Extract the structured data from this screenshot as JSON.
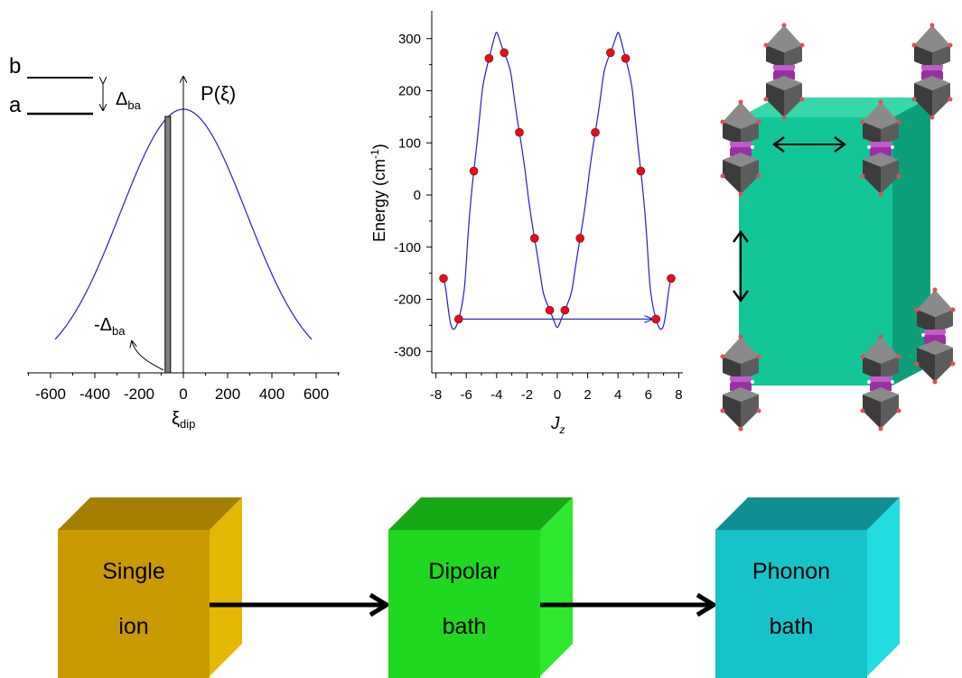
{
  "colors": {
    "curve": "#1f1fd0",
    "point": "#e0101c",
    "bar": "#808080",
    "lattice_box": "#12c697",
    "single_ion_box": "#c99a00",
    "dipolar_box": "#1fd81f",
    "phonon_box": "#16c3c9"
  },
  "panel_gaussian": {
    "level_b": "b",
    "level_a": "a",
    "delta_label": "Δ",
    "delta_sub": "ba",
    "p_label": "P(ξ)",
    "neg_delta_label": "-Δ",
    "neg_delta_sub": "ba",
    "xaxis_symbol": "ξ",
    "xaxis_sub": "dip",
    "xtick_labels": [
      "-600",
      "-400",
      "-200",
      "0",
      "200",
      "400",
      "600"
    ],
    "chart_data": {
      "type": "line",
      "series_shape": "gaussian",
      "center": 0,
      "half_width_at_edge": 580,
      "xlim": [
        -700,
        700
      ],
      "xticks": [
        -600,
        -400,
        -200,
        0,
        200,
        400,
        600
      ],
      "bar_x": -70
    }
  },
  "panel_energy": {
    "ylabel_main": "Energy (cm",
    "ylabel_sup": "-1",
    "ylabel_end": ")",
    "xlabel": "J",
    "xlabel_sub": "z",
    "ytick_labels": [
      "300",
      "200",
      "100",
      "0",
      "-100",
      "-200",
      "-300"
    ],
    "xtick_labels": [
      "-8",
      "-6",
      "-4",
      "-2",
      "0",
      "2",
      "4",
      "6",
      "8"
    ],
    "chart_data": {
      "type": "scatter",
      "x": [
        -7.5,
        -6.5,
        -5.5,
        -4.5,
        -3.5,
        -2.5,
        -1.5,
        -0.5,
        0.5,
        1.5,
        2.5,
        3.5,
        4.5,
        5.5,
        6.5,
        7.5
      ],
      "y": [
        -160,
        -238,
        46,
        262,
        273,
        120,
        -83,
        -221,
        -221,
        -83,
        120,
        273,
        262,
        46,
        -238,
        -160
      ],
      "xlim": [
        -8.5,
        8.5
      ],
      "ylim": [
        -330,
        350
      ],
      "xticks": [
        -8,
        -6,
        -4,
        -2,
        0,
        2,
        4,
        6,
        8
      ],
      "yticks": [
        300,
        200,
        100,
        0,
        -100,
        -200,
        -300
      ],
      "arrow_from_x": -6.5,
      "arrow_to_x": 6.5,
      "arrow_y": -238
    }
  },
  "panel_lattice": {
    "arrow_horizontal": "↔",
    "arrow_vertical": "↕"
  },
  "flow_boxes": [
    {
      "line1": "Single",
      "line2": "ion"
    },
    {
      "line1": "Dipolar",
      "line2": "bath"
    },
    {
      "line1": "Phonon",
      "line2": "bath"
    }
  ]
}
